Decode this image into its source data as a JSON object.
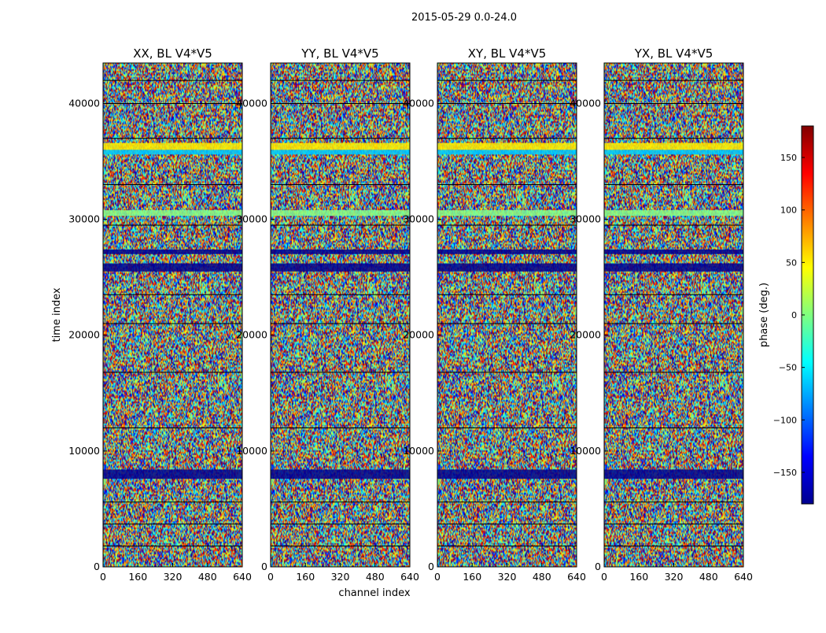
{
  "figure": {
    "suptitle": "2015-05-29 0.0-24.0"
  },
  "chart_data": {
    "type": "heatmap",
    "xlabel": "channel index",
    "ylabel": "time index",
    "x_ticks": [
      0,
      160,
      320,
      480,
      640
    ],
    "y_ticks": [
      0,
      10000,
      20000,
      30000,
      40000
    ],
    "xlim": [
      0,
      640
    ],
    "ylim": [
      0,
      43500
    ],
    "panels": [
      {
        "title": "XX, BL V4*V5",
        "ytick_labels": [
          "0",
          "10000",
          "20000",
          "30000",
          "40000"
        ]
      },
      {
        "title": "YY, BL V4*V5",
        "ytick_labels": [
          "0",
          "10000",
          "20000",
          "30000",
          "40000"
        ]
      },
      {
        "title": "XY, BL V4*V5",
        "ytick_labels": [
          "0",
          "10000",
          "20000",
          "30000",
          "40000"
        ]
      },
      {
        "title": "YX, BL V4*V5",
        "ytick_labels": [
          "0",
          "10000",
          "20000",
          "30000",
          "40000"
        ]
      }
    ],
    "colorbar": {
      "label": "phase (deg.)",
      "range": [
        -180,
        180
      ],
      "ticks": [
        -150,
        -100,
        -50,
        0,
        50,
        100,
        150
      ],
      "tick_labels": [
        "−150",
        "−100",
        "−50",
        "0",
        "50",
        "100",
        "150"
      ],
      "colormap": "jet"
    }
  }
}
